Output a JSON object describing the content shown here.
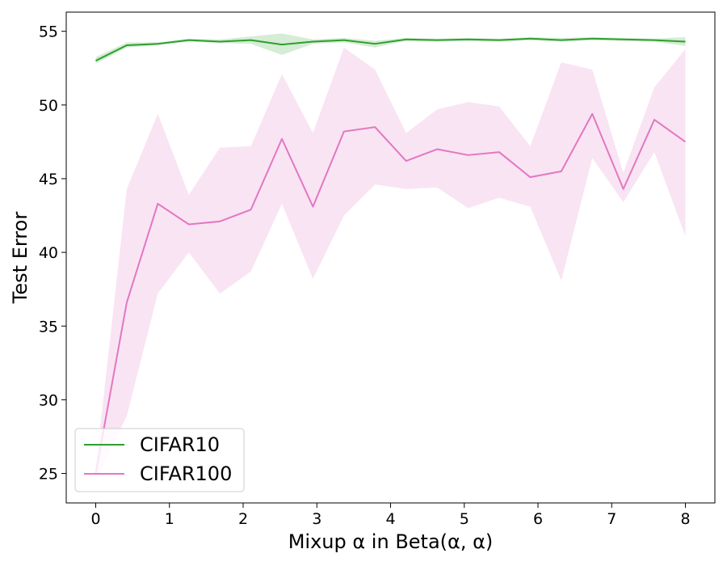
{
  "chart_data": {
    "type": "line",
    "title": "",
    "xlabel": "Mixup α in Beta(α, α)",
    "ylabel": "Test Error",
    "xlim": [
      -0.4,
      8.4
    ],
    "ylim": [
      23,
      56.3
    ],
    "xticks": [
      0,
      1,
      2,
      3,
      4,
      5,
      6,
      7,
      8
    ],
    "yticks": [
      25,
      30,
      35,
      40,
      45,
      50,
      55
    ],
    "grid": false,
    "legend_position": "lower-left",
    "x": [
      0,
      0.421,
      0.842,
      1.263,
      1.684,
      2.105,
      2.526,
      2.947,
      3.368,
      3.789,
      4.211,
      4.632,
      5.053,
      5.474,
      5.895,
      6.316,
      6.737,
      7.158,
      7.579,
      8.0
    ],
    "series": [
      {
        "name": "CIFAR10",
        "color": "#2ca02c",
        "band_color": "#2ca02c",
        "values": [
          53.0,
          54.05,
          54.15,
          54.4,
          54.3,
          54.4,
          54.1,
          54.3,
          54.4,
          54.15,
          54.45,
          54.4,
          54.45,
          54.4,
          54.5,
          54.4,
          54.5,
          54.45,
          54.4,
          54.3
        ],
        "lower": [
          52.8,
          53.9,
          54.05,
          54.3,
          54.2,
          54.15,
          53.4,
          54.15,
          54.25,
          53.9,
          54.35,
          54.3,
          54.35,
          54.3,
          54.4,
          54.3,
          54.4,
          54.35,
          54.3,
          54.0
        ],
        "upper": [
          53.25,
          54.25,
          54.25,
          54.5,
          54.45,
          54.65,
          54.85,
          54.45,
          54.55,
          54.35,
          54.55,
          54.5,
          54.55,
          54.5,
          54.6,
          54.55,
          54.6,
          54.55,
          54.5,
          54.6
        ]
      },
      {
        "name": "CIFAR100",
        "color": "#e377c2",
        "band_color": "#e377c2",
        "values": [
          25.0,
          36.6,
          43.3,
          41.9,
          42.1,
          42.9,
          47.7,
          43.1,
          48.2,
          48.5,
          46.2,
          47.0,
          46.6,
          46.8,
          45.1,
          45.5,
          49.4,
          44.3,
          49.0,
          47.5
        ],
        "lower": [
          24.6,
          28.9,
          37.2,
          40.0,
          37.2,
          38.7,
          43.3,
          38.2,
          42.5,
          44.6,
          44.3,
          44.4,
          43.0,
          43.7,
          43.1,
          38.1,
          46.4,
          43.4,
          46.8,
          41.1
        ],
        "upper": [
          25.4,
          44.3,
          49.4,
          43.9,
          47.1,
          47.2,
          52.1,
          48.1,
          53.9,
          52.4,
          48.1,
          49.7,
          50.2,
          49.9,
          47.2,
          52.9,
          52.4,
          45.4,
          51.2,
          53.8
        ]
      }
    ]
  }
}
